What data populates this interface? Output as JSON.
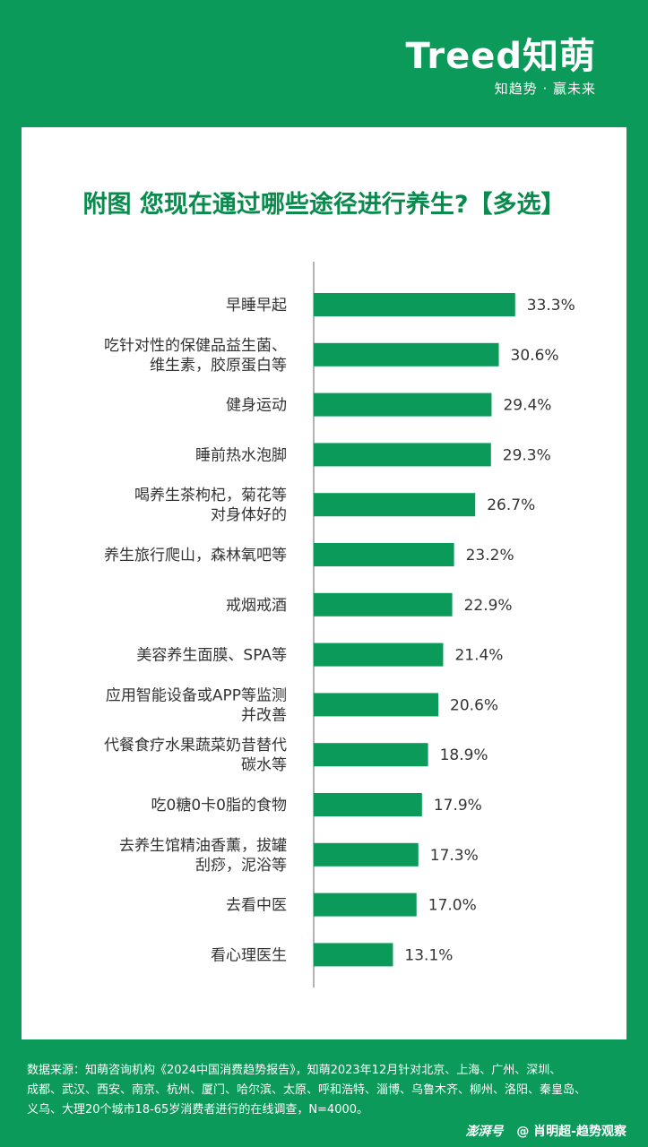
{
  "brand": {
    "logo": "Treed知萌",
    "slogan": "知趋势 · 赢未来"
  },
  "chart_data": {
    "type": "bar",
    "orientation": "horizontal",
    "title": "附图 您现在通过哪些途径进行养生?【多选】",
    "xlim": [
      0,
      40
    ],
    "grid": false,
    "value_suffix": "%",
    "bar_color": "#0b9a5a",
    "categories": [
      [
        "早睡早起"
      ],
      [
        "吃针对性的保健品益生菌、",
        "维生素，胶原蛋白等"
      ],
      [
        "健身运动"
      ],
      [
        "睡前热水泡脚"
      ],
      [
        "喝养生茶枸杞，菊花等",
        "对身体好的"
      ],
      [
        "养生旅行爬山，森林氧吧等"
      ],
      [
        "戒烟戒酒"
      ],
      [
        "美容养生面膜、SPA等"
      ],
      [
        "应用智能设备或APP等监测",
        "并改善"
      ],
      [
        "代餐食疗水果蔬菜奶昔替代",
        "碳水等"
      ],
      [
        "吃0糖0卡0脂的食物"
      ],
      [
        "去养生馆精油香薰，拔罐",
        "刮痧，泥浴等"
      ],
      [
        "去看中医"
      ],
      [
        "看心理医生"
      ]
    ],
    "values": [
      33.3,
      30.6,
      29.4,
      29.3,
      26.7,
      23.2,
      22.9,
      21.4,
      20.6,
      18.9,
      17.9,
      17.3,
      17.0,
      13.1
    ]
  },
  "footer": {
    "source_lines": [
      "数据来源：知萌咨询机构《2024中国消费趋势报告》，知萌2023年12月针对北京、上海、广州、深圳、",
      "成都、武汉、西安、南京、杭州、厦门、哈尔滨、太原、呼和浩特、淄博、乌鲁木齐、柳州、洛阳、秦皇岛、",
      "义乌、大理20个城市18-65岁消费者进行的在线调查，N=4000。"
    ]
  },
  "credit": {
    "source": "澎湃号",
    "author": "@ 肖明超-趋势观察"
  }
}
